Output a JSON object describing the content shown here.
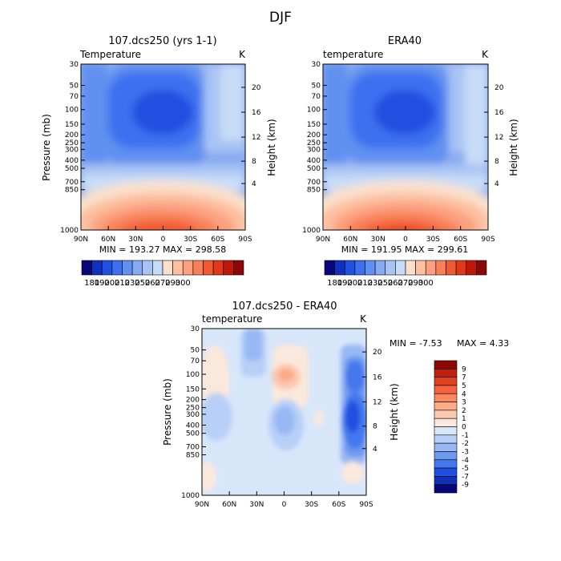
{
  "figure": {
    "title": "DJF"
  },
  "chart_data": [
    {
      "type": "heatmap",
      "title": "107.dcs250 (yrs 1-1)",
      "subtitle_left": "Temperature",
      "subtitle_right": "K",
      "ylabel": "Pressure (mb)",
      "ylabel_right": "Height (km)",
      "x_ticks": [
        "90N",
        "60N",
        "30N",
        "0",
        "30S",
        "60S",
        "90S"
      ],
      "y_ticks": [
        "30",
        "50",
        "70",
        "100",
        "150",
        "200",
        "250",
        "300",
        "400",
        "500",
        "700",
        "850",
        "1000"
      ],
      "y_ticks_right": [
        "20",
        "16",
        "12",
        "8",
        "4"
      ],
      "stats": "MIN = 193.27   MAX = 298.58",
      "colorbar_labels": [
        "180",
        "190",
        "200",
        "210",
        "230",
        "250",
        "260",
        "270",
        "290",
        "300"
      ]
    },
    {
      "type": "heatmap",
      "title": "ERA40",
      "subtitle_left": "temperature",
      "subtitle_right": "K",
      "ylabel": "",
      "ylabel_right": "Height (km)",
      "x_ticks": [
        "90N",
        "60N",
        "30N",
        "0",
        "30S",
        "60S",
        "90S"
      ],
      "y_ticks": [
        "30",
        "50",
        "70",
        "100",
        "150",
        "200",
        "250",
        "300",
        "400",
        "500",
        "700",
        "850",
        "1000"
      ],
      "y_ticks_right": [
        "20",
        "16",
        "12",
        "8",
        "4"
      ],
      "stats": "MIN = 191.95   MAX = 299.61",
      "colorbar_labels": [
        "180",
        "190",
        "200",
        "210",
        "230",
        "250",
        "260",
        "270",
        "290",
        "300"
      ]
    },
    {
      "type": "heatmap",
      "title": "107.dcs250 - ERA40",
      "subtitle_left": "temperature",
      "subtitle_right": "K",
      "ylabel": "Pressure (mb)",
      "ylabel_right": "Height (km)",
      "x_ticks": [
        "90N",
        "60N",
        "30N",
        "0",
        "30S",
        "60S",
        "90S"
      ],
      "y_ticks": [
        "30",
        "50",
        "70",
        "100",
        "150",
        "200",
        "250",
        "300",
        "400",
        "500",
        "700",
        "850",
        "1000"
      ],
      "y_ticks_right": [
        "20",
        "16",
        "12",
        "8",
        "4"
      ],
      "stats_min": "MIN =   -7.53",
      "stats_max": "MAX =    4.33",
      "colorbar_labels": [
        "9",
        "7",
        "5",
        "4",
        "3",
        "2",
        "1",
        "0",
        "-1",
        "-2",
        "-3",
        "-4",
        "-5",
        "-7",
        "-9"
      ]
    }
  ],
  "colors": {
    "abs_scale": [
      "#08087a",
      "#1030c0",
      "#2050e0",
      "#3c70f0",
      "#6090f0",
      "#88aaf0",
      "#a8c4f4",
      "#c8dcf8",
      "#fae0cc",
      "#fcc0a0",
      "#fca080",
      "#f88058",
      "#f05a30",
      "#e03818",
      "#c01808",
      "#8c0808"
    ],
    "diff_scale": [
      "#8c0808",
      "#c02010",
      "#e04020",
      "#f86040",
      "#fc8860",
      "#fcaa88",
      "#fcc8b0",
      "#fae8dc",
      "#d8e6fa",
      "#b8d0f8",
      "#98b8f4",
      "#6c98f0",
      "#4478ec",
      "#2050e0",
      "#1030b8",
      "#08087a"
    ]
  }
}
